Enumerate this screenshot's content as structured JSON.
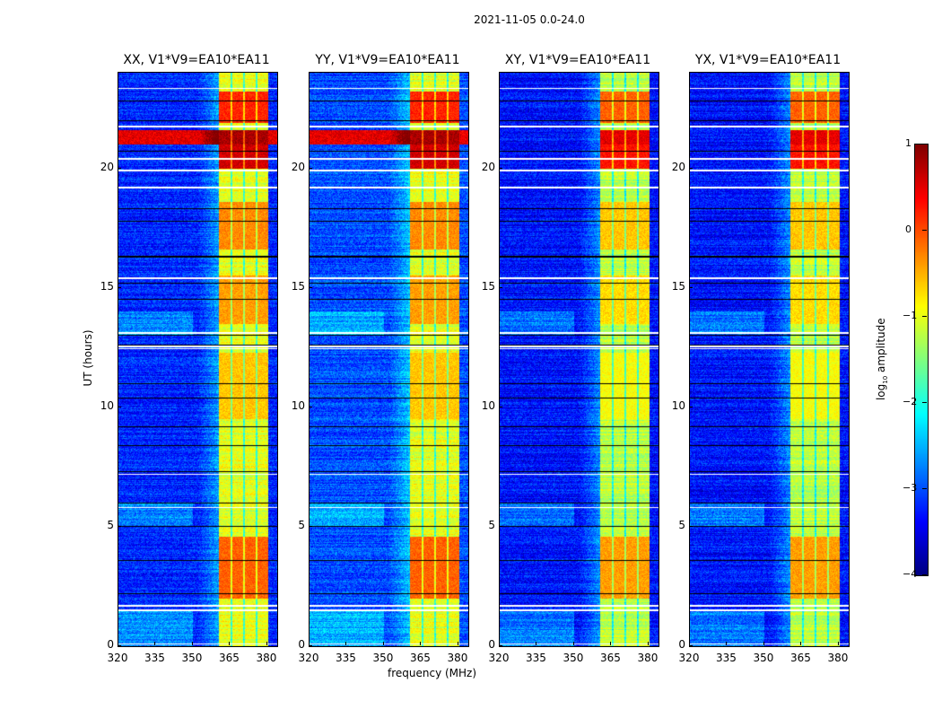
{
  "chart_data": {
    "type": "heatmap",
    "title": "2021-11-05 0.0-24.0",
    "xlabel": "frequency (MHz)",
    "ylabel": "UT (hours)",
    "xlim": [
      320,
      384
    ],
    "ylim": [
      0,
      24
    ],
    "xticks": [
      "320",
      "335",
      "350",
      "365",
      "380"
    ],
    "xtick_values": [
      320,
      335,
      350,
      365,
      380
    ],
    "yticks": [
      "0",
      "5",
      "10",
      "15",
      "20"
    ],
    "ytick_values": [
      0,
      5,
      10,
      15,
      20
    ],
    "colorbar": {
      "label_prefix": "log",
      "label_sub": "10",
      "label_suffix": " amplitude",
      "colormap": "jet",
      "range": [
        -4,
        1
      ],
      "ticks": [
        "1",
        "0",
        "−1",
        "−2",
        "−3",
        "−4"
      ],
      "tick_values": [
        1,
        0,
        -1,
        -2,
        -3,
        -4
      ]
    },
    "panels": [
      {
        "name": "XX",
        "title": "XX, V1*V9=EA10*EA11",
        "band_level": -1.0,
        "base_level": -3.2
      },
      {
        "name": "YY",
        "title": "YY, V1*V9=EA10*EA11",
        "band_level": -1.0,
        "base_level": -3.0
      },
      {
        "name": "XY",
        "title": "XY, V1*V9=EA10*EA11",
        "band_level": -1.2,
        "base_level": -3.3
      },
      {
        "name": "YX",
        "title": "YX, V1*V9=EA10*EA11",
        "band_level": -1.2,
        "base_level": -3.3
      }
    ],
    "rfi_band_mhz": [
      360.5,
      380.3
    ],
    "subband_gaps_mhz": [
      365.5,
      370.5,
      375.6
    ],
    "bright_intervals_hours": [
      {
        "t": [
          21.0,
          21.6
        ],
        "level": 0.8,
        "full_width": true
      },
      {
        "t": [
          20.0,
          21.0
        ],
        "level": 0.6,
        "full_width": false
      },
      {
        "t": [
          21.9,
          23.2
        ],
        "level": 0.2,
        "full_width": false
      },
      {
        "t": [
          16.6,
          18.6
        ],
        "level": -0.3,
        "full_width": false
      },
      {
        "t": [
          13.5,
          15.5
        ],
        "level": -0.4,
        "full_width": false
      },
      {
        "t": [
          2.0,
          4.6
        ],
        "level": -0.1,
        "full_width": false
      },
      {
        "t": [
          9.5,
          12.3
        ],
        "level": -0.6,
        "full_width": false
      }
    ],
    "flagged_rows_hours": [
      0.1,
      1.5,
      1.7,
      5.8,
      7.2,
      12.45,
      12.55,
      13.1,
      15.4,
      19.2,
      19.9,
      20.4,
      21.75,
      23.35
    ],
    "dark_rows_hours": [
      2.2,
      3.6,
      5.0,
      6.0,
      7.3,
      8.4,
      9.2,
      10.4,
      11.0,
      12.6,
      13.0,
      14.5,
      15.2,
      16.3,
      17.8,
      18.3,
      20.7,
      22.0,
      22.8
    ]
  }
}
